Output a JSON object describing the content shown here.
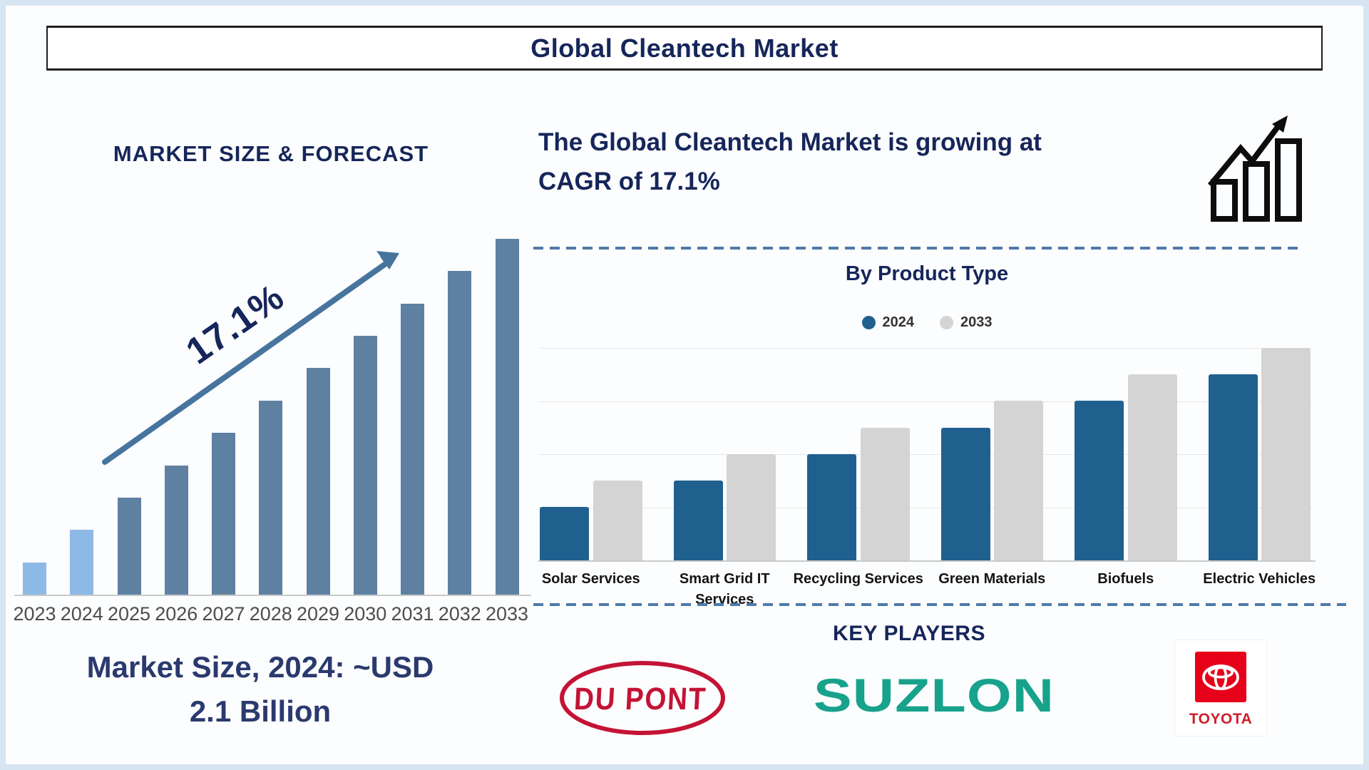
{
  "page": {
    "title": "Global Cleantech Market"
  },
  "left_panel": {
    "heading": "MARKET SIZE & FORECAST",
    "caption_line1": "Market Size, 2024: ~USD",
    "caption_line2": "2.1 Billion"
  },
  "right_panel": {
    "heading_line1": "The Global Cleantech Market is growing at",
    "heading_line2": "CAGR of 17.1%",
    "icon": "growth-trend-icon",
    "divider_style": "blue-dashed-line",
    "key_players_title": "KEY PLAYERS",
    "players": [
      {
        "name": "DU PONT",
        "brand_color": "#c41335",
        "logo": "dupont-oval-logo"
      },
      {
        "name": "SUZLON",
        "brand_color": "#18a28c",
        "logo": "suzlon-wordmark"
      },
      {
        "name": "TOYOTA",
        "brand_color": "#e60019",
        "logo": "toyota-emblem"
      }
    ]
  },
  "chart_data": [
    {
      "id": "market-size-forecast",
      "type": "bar",
      "title": "MARKET SIZE & FORECAST",
      "categories": [
        "2023",
        "2024",
        "2025",
        "2026",
        "2027",
        "2028",
        "2029",
        "2030",
        "2031",
        "2032",
        "2033"
      ],
      "values": [
        1,
        2,
        3,
        4,
        5,
        6,
        7,
        8,
        9,
        10,
        11
      ],
      "values_unit": "relative height - no numeric y-axis shown",
      "highlight_years": [
        "2023",
        "2024"
      ],
      "annotation": "17.1%",
      "annotation_meaning": "CAGR growth arrow",
      "known_points": {
        "market_size_2024_usd_billion": 2.1,
        "cagr_percent": 17.1
      },
      "xlabel": "",
      "ylabel": "",
      "grid": false,
      "legend": false
    },
    {
      "id": "by-product-type",
      "type": "bar",
      "title": "By Product Type",
      "categories": [
        "Solar Services",
        "Smart Grid IT Services",
        "Recycling Services",
        "Green Materials",
        "Biofuels",
        "Electric Vehicles"
      ],
      "series": [
        {
          "name": "2024",
          "values": [
            2,
            3,
            4,
            5,
            6,
            7
          ],
          "color": "#20608f"
        },
        {
          "name": "2033",
          "values": [
            3,
            4,
            5,
            6,
            7,
            8
          ],
          "color": "#d4d4d4"
        }
      ],
      "values_unit": "relative height - no numeric y-axis shown",
      "gridline_values": [
        2,
        4,
        6,
        8
      ],
      "grid": true,
      "legend_position": "top"
    }
  ],
  "colors": {
    "navy_text": "#16265a",
    "caption_navy": "#2a3a6e",
    "slate_bar": "#5e81a2",
    "light_blue_bar": "#8db9e6",
    "arrow_blue": "#47749e",
    "product_blue": "#20608f",
    "product_gray": "#d4d4d4",
    "gridline": "#e7e7e7",
    "axis_line": "#c9c9c9",
    "dashed_divider": "#4e7ba7",
    "year_label": "#4d4d4d",
    "frame_blue": "#d7e4f1",
    "icon_black": "#0d0d0d"
  }
}
